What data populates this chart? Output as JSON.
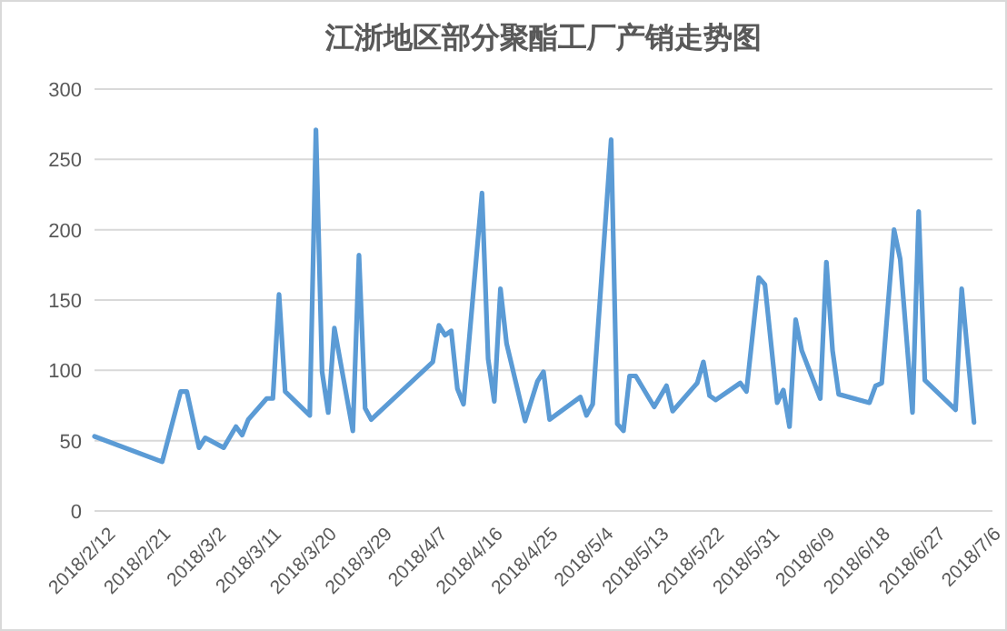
{
  "chart_data": {
    "type": "line",
    "title": "江浙地区部分聚酯工厂产销走势图",
    "x": [
      "2018-02-10",
      "2018-02-21",
      "2018-02-24",
      "2018-02-25",
      "2018-02-27",
      "2018-02-28",
      "2018-03-03",
      "2018-03-05",
      "2018-03-06",
      "2018-03-07",
      "2018-03-10",
      "2018-03-11",
      "2018-03-12",
      "2018-03-13",
      "2018-03-17",
      "2018-03-18",
      "2018-03-19",
      "2018-03-20",
      "2018-03-21",
      "2018-03-24",
      "2018-03-25",
      "2018-03-26",
      "2018-03-27",
      "2018-04-06",
      "2018-04-07",
      "2018-04-08",
      "2018-04-09",
      "2018-04-10",
      "2018-04-11",
      "2018-04-14",
      "2018-04-15",
      "2018-04-16",
      "2018-04-17",
      "2018-04-18",
      "2018-04-21",
      "2018-04-23",
      "2018-04-24",
      "2018-04-25",
      "2018-04-30",
      "2018-05-01",
      "2018-05-02",
      "2018-05-05",
      "2018-05-06",
      "2018-05-07",
      "2018-05-08",
      "2018-05-09",
      "2018-05-12",
      "2018-05-14",
      "2018-05-15",
      "2018-05-19",
      "2018-05-20",
      "2018-05-21",
      "2018-05-22",
      "2018-05-26",
      "2018-05-27",
      "2018-05-29",
      "2018-05-30",
      "2018-06-01",
      "2018-06-02",
      "2018-06-03",
      "2018-06-04",
      "2018-06-05",
      "2018-06-08",
      "2018-06-09",
      "2018-06-10",
      "2018-06-11",
      "2018-06-16",
      "2018-06-17",
      "2018-06-18",
      "2018-06-20",
      "2018-06-21",
      "2018-06-23",
      "2018-06-24",
      "2018-06-25",
      "2018-06-30",
      "2018-07-01",
      "2018-07-03"
    ],
    "series": [
      {
        "color": "#5b9bd5",
        "values": [
          53,
          35,
          85,
          85,
          45,
          52,
          45,
          60,
          54,
          65,
          80,
          80,
          154,
          85,
          68,
          271,
          99,
          70,
          130,
          57,
          182,
          73,
          65,
          106,
          132,
          125,
          128,
          87,
          76,
          226,
          108,
          78,
          158,
          119,
          64,
          92,
          99,
          65,
          81,
          68,
          76,
          264,
          62,
          57,
          96,
          96,
          74,
          89,
          71,
          91,
          106,
          82,
          79,
          91,
          85,
          166,
          161,
          77,
          86,
          60,
          136,
          114,
          80,
          177,
          114,
          83,
          77,
          89,
          91,
          200,
          179,
          70,
          213,
          93,
          72,
          158,
          63
        ]
      }
    ],
    "xlim": [
      "2018-02-10",
      "2018-07-06"
    ],
    "xticks": [
      {
        "value": "2018-02-12",
        "label": "2018/2/12"
      },
      {
        "value": "2018-02-21",
        "label": "2018/2/21"
      },
      {
        "value": "2018-03-02",
        "label": "2018/3/2"
      },
      {
        "value": "2018-03-11",
        "label": "2018/3/11"
      },
      {
        "value": "2018-03-20",
        "label": "2018/3/20"
      },
      {
        "value": "2018-03-29",
        "label": "2018/3/29"
      },
      {
        "value": "2018-04-07",
        "label": "2018/4/7"
      },
      {
        "value": "2018-04-16",
        "label": "2018/4/16"
      },
      {
        "value": "2018-04-25",
        "label": "2018/4/25"
      },
      {
        "value": "2018-05-04",
        "label": "2018/5/4"
      },
      {
        "value": "2018-05-13",
        "label": "2018/5/13"
      },
      {
        "value": "2018-05-22",
        "label": "2018/5/22"
      },
      {
        "value": "2018-05-31",
        "label": "2018/5/31"
      },
      {
        "value": "2018-06-09",
        "label": "2018/6/9"
      },
      {
        "value": "2018-06-18",
        "label": "2018/6/18"
      },
      {
        "value": "2018-06-27",
        "label": "2018/6/27"
      },
      {
        "value": "2018-07-06",
        "label": "2018/7/6"
      }
    ],
    "ylim": [
      0,
      300
    ],
    "yticks": [
      0,
      50,
      100,
      150,
      200,
      250,
      300
    ],
    "grid": "y",
    "marker": "none",
    "line_style": "solid"
  }
}
